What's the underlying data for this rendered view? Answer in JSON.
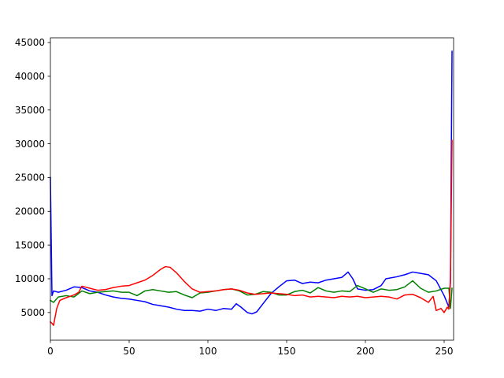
{
  "chart_data": {
    "type": "line",
    "title": "",
    "xlabel": "",
    "ylabel": "",
    "xlim": [
      0,
      256
    ],
    "ylim": [
      900,
      45700
    ],
    "xticks": [
      0,
      50,
      100,
      150,
      200,
      250
    ],
    "xtick_labels": [
      "0",
      "50",
      "100",
      "150",
      "200",
      "250"
    ],
    "yticks": [
      5000,
      10000,
      15000,
      20000,
      25000,
      30000,
      35000,
      40000,
      45000
    ],
    "ytick_labels": [
      "5000",
      "10000",
      "15000",
      "20000",
      "25000",
      "30000",
      "35000",
      "40000",
      "45000"
    ],
    "grid": false,
    "legend": false,
    "series": [
      {
        "color": "#0000ff",
        "points": [
          [
            0,
            25000
          ],
          [
            1,
            7500
          ],
          [
            2,
            8200
          ],
          [
            5,
            8000
          ],
          [
            10,
            8300
          ],
          [
            15,
            8800
          ],
          [
            20,
            8700
          ],
          [
            25,
            8200
          ],
          [
            30,
            8000
          ],
          [
            35,
            7600
          ],
          [
            40,
            7300
          ],
          [
            45,
            7100
          ],
          [
            50,
            7000
          ],
          [
            55,
            6800
          ],
          [
            60,
            6600
          ],
          [
            65,
            6200
          ],
          [
            70,
            6000
          ],
          [
            75,
            5800
          ],
          [
            80,
            5500
          ],
          [
            85,
            5300
          ],
          [
            90,
            5300
          ],
          [
            95,
            5200
          ],
          [
            100,
            5500
          ],
          [
            105,
            5300
          ],
          [
            110,
            5600
          ],
          [
            115,
            5500
          ],
          [
            118,
            6300
          ],
          [
            121,
            5800
          ],
          [
            125,
            5000
          ],
          [
            128,
            4800
          ],
          [
            131,
            5100
          ],
          [
            135,
            6300
          ],
          [
            140,
            7800
          ],
          [
            145,
            8800
          ],
          [
            150,
            9700
          ],
          [
            155,
            9800
          ],
          [
            160,
            9300
          ],
          [
            165,
            9500
          ],
          [
            170,
            9400
          ],
          [
            175,
            9800
          ],
          [
            180,
            10000
          ],
          [
            185,
            10200
          ],
          [
            189,
            11000
          ],
          [
            192,
            10000
          ],
          [
            195,
            8500
          ],
          [
            200,
            8300
          ],
          [
            205,
            8400
          ],
          [
            210,
            9000
          ],
          [
            213,
            10000
          ],
          [
            220,
            10300
          ],
          [
            225,
            10600
          ],
          [
            230,
            11000
          ],
          [
            235,
            10800
          ],
          [
            240,
            10600
          ],
          [
            245,
            9700
          ],
          [
            250,
            7500
          ],
          [
            253,
            5800
          ],
          [
            254,
            10000
          ],
          [
            255,
            43700
          ]
        ]
      },
      {
        "color": "#008000",
        "points": [
          [
            0,
            6800
          ],
          [
            2,
            6500
          ],
          [
            5,
            7300
          ],
          [
            10,
            7500
          ],
          [
            15,
            7300
          ],
          [
            20,
            8200
          ],
          [
            25,
            7800
          ],
          [
            30,
            8000
          ],
          [
            35,
            8100
          ],
          [
            40,
            8200
          ],
          [
            45,
            8000
          ],
          [
            50,
            8000
          ],
          [
            55,
            7500
          ],
          [
            60,
            8200
          ],
          [
            65,
            8400
          ],
          [
            70,
            8200
          ],
          [
            75,
            8000
          ],
          [
            80,
            8100
          ],
          [
            85,
            7600
          ],
          [
            90,
            7200
          ],
          [
            95,
            7900
          ],
          [
            100,
            8000
          ],
          [
            105,
            8200
          ],
          [
            110,
            8400
          ],
          [
            115,
            8500
          ],
          [
            120,
            8200
          ],
          [
            125,
            7600
          ],
          [
            130,
            7700
          ],
          [
            135,
            8100
          ],
          [
            140,
            8000
          ],
          [
            145,
            7600
          ],
          [
            150,
            7600
          ],
          [
            155,
            8100
          ],
          [
            160,
            8300
          ],
          [
            165,
            7900
          ],
          [
            170,
            8700
          ],
          [
            175,
            8200
          ],
          [
            180,
            8000
          ],
          [
            185,
            8200
          ],
          [
            190,
            8100
          ],
          [
            195,
            9000
          ],
          [
            200,
            8500
          ],
          [
            205,
            8000
          ],
          [
            210,
            8500
          ],
          [
            215,
            8300
          ],
          [
            220,
            8400
          ],
          [
            225,
            8800
          ],
          [
            230,
            9700
          ],
          [
            235,
            8600
          ],
          [
            240,
            8000
          ],
          [
            245,
            8200
          ],
          [
            250,
            8600
          ],
          [
            253,
            8600
          ],
          [
            254,
            5600
          ],
          [
            255,
            8600
          ]
        ]
      },
      {
        "color": "#ff0000",
        "points": [
          [
            0,
            3600
          ],
          [
            1,
            3400
          ],
          [
            2,
            3100
          ],
          [
            4,
            5600
          ],
          [
            6,
            6800
          ],
          [
            10,
            7200
          ],
          [
            15,
            7600
          ],
          [
            18,
            8000
          ],
          [
            20,
            8900
          ],
          [
            25,
            8600
          ],
          [
            30,
            8300
          ],
          [
            35,
            8400
          ],
          [
            40,
            8700
          ],
          [
            45,
            8900
          ],
          [
            50,
            9000
          ],
          [
            55,
            9400
          ],
          [
            60,
            9800
          ],
          [
            65,
            10500
          ],
          [
            70,
            11400
          ],
          [
            73,
            11800
          ],
          [
            76,
            11700
          ],
          [
            80,
            10900
          ],
          [
            85,
            9600
          ],
          [
            90,
            8500
          ],
          [
            95,
            8000
          ],
          [
            100,
            8100
          ],
          [
            105,
            8200
          ],
          [
            110,
            8400
          ],
          [
            115,
            8500
          ],
          [
            120,
            8300
          ],
          [
            125,
            7900
          ],
          [
            130,
            7700
          ],
          [
            135,
            7800
          ],
          [
            140,
            7900
          ],
          [
            145,
            7800
          ],
          [
            150,
            7700
          ],
          [
            155,
            7500
          ],
          [
            160,
            7600
          ],
          [
            165,
            7300
          ],
          [
            170,
            7400
          ],
          [
            175,
            7300
          ],
          [
            180,
            7200
          ],
          [
            185,
            7400
          ],
          [
            190,
            7300
          ],
          [
            195,
            7400
          ],
          [
            200,
            7200
          ],
          [
            205,
            7300
          ],
          [
            210,
            7400
          ],
          [
            215,
            7300
          ],
          [
            220,
            7000
          ],
          [
            225,
            7600
          ],
          [
            230,
            7700
          ],
          [
            235,
            7200
          ],
          [
            240,
            6500
          ],
          [
            243,
            7400
          ],
          [
            245,
            5300
          ],
          [
            248,
            5600
          ],
          [
            250,
            5000
          ],
          [
            252,
            5800
          ],
          [
            253,
            5500
          ],
          [
            254,
            9500
          ],
          [
            255,
            30500
          ]
        ]
      }
    ]
  }
}
